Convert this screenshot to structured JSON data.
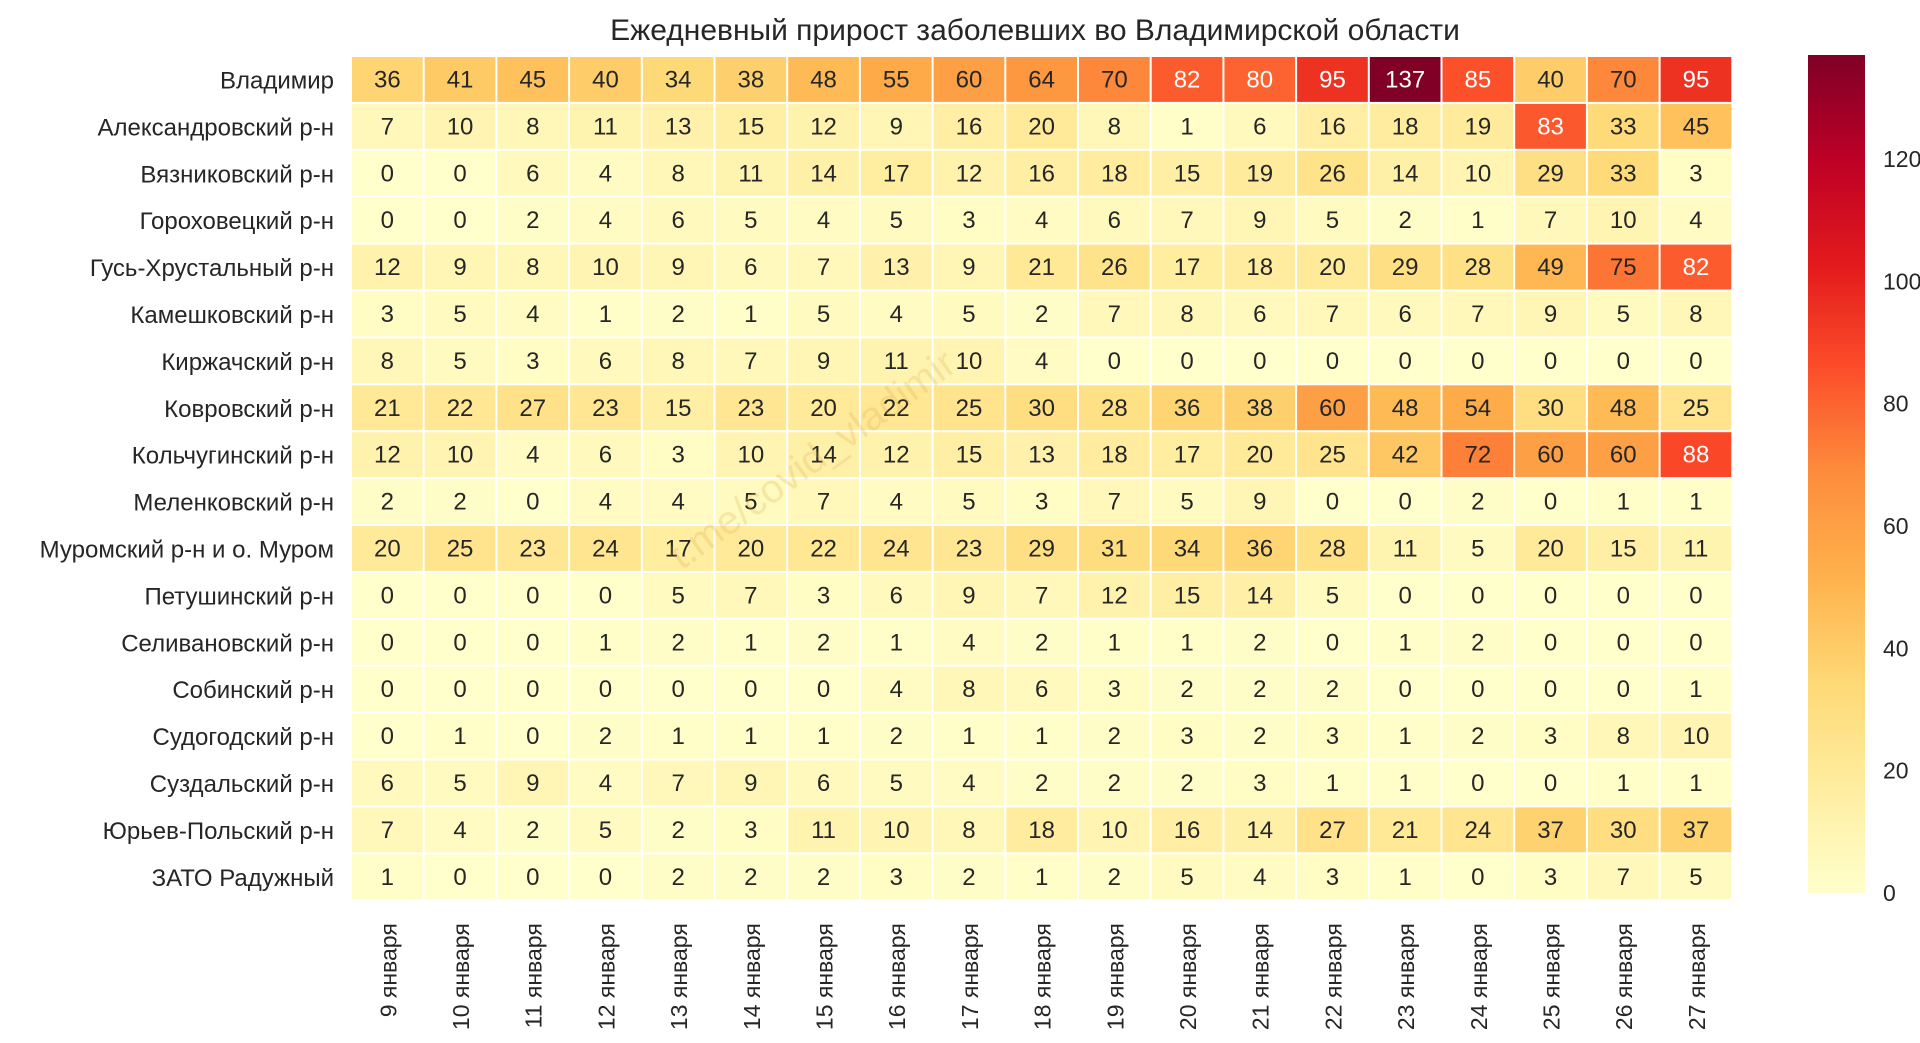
{
  "chart_data": {
    "type": "heatmap",
    "title": "Ежедневный прирост заболевших во Владимирской области",
    "watermark": "t.me/covid_vladimir",
    "rows": [
      "Владимир",
      "Александровский р-н",
      "Вязниковский р-н",
      "Гороховецкий р-н",
      "Гусь-Хрустальный р-н",
      "Камешковский р-н",
      "Киржачский р-н",
      "Ковровский р-н",
      "Кольчугинский р-н",
      "Меленковский р-н",
      "Муромский р-н и о. Муром",
      "Петушинский р-н",
      "Селивановский р-н",
      "Собинский р-н",
      "Судогодский р-н",
      "Суздальский р-н",
      "Юрьев-Польский р-н",
      "ЗАТО Радужный"
    ],
    "columns": [
      "9 января",
      "10 января",
      "11 января",
      "12 января",
      "13 января",
      "14 января",
      "15 января",
      "16 января",
      "17 января",
      "18 января",
      "19 января",
      "20 января",
      "21 января",
      "22 января",
      "23 января",
      "24 января",
      "25 января",
      "26 января",
      "27 января"
    ],
    "values": [
      [
        36,
        41,
        45,
        40,
        34,
        38,
        48,
        55,
        60,
        64,
        70,
        82,
        80,
        95,
        137,
        85,
        40,
        70,
        95
      ],
      [
        7,
        10,
        8,
        11,
        13,
        15,
        12,
        9,
        16,
        20,
        8,
        1,
        6,
        16,
        18,
        19,
        83,
        33,
        45
      ],
      [
        0,
        0,
        6,
        4,
        8,
        11,
        14,
        17,
        12,
        16,
        18,
        15,
        19,
        26,
        14,
        10,
        29,
        33,
        3
      ],
      [
        0,
        0,
        2,
        4,
        6,
        5,
        4,
        5,
        3,
        4,
        6,
        7,
        9,
        5,
        2,
        1,
        7,
        10,
        4
      ],
      [
        12,
        9,
        8,
        10,
        9,
        6,
        7,
        13,
        9,
        21,
        26,
        17,
        18,
        20,
        29,
        28,
        49,
        75,
        82
      ],
      [
        3,
        5,
        4,
        1,
        2,
        1,
        5,
        4,
        5,
        2,
        7,
        8,
        6,
        7,
        6,
        7,
        9,
        5,
        8
      ],
      [
        8,
        5,
        3,
        6,
        8,
        7,
        9,
        11,
        10,
        4,
        0,
        0,
        0,
        0,
        0,
        0,
        0,
        0,
        0
      ],
      [
        21,
        22,
        27,
        23,
        15,
        23,
        20,
        22,
        25,
        30,
        28,
        36,
        38,
        60,
        48,
        54,
        30,
        48,
        25
      ],
      [
        12,
        10,
        4,
        6,
        3,
        10,
        14,
        12,
        15,
        13,
        18,
        17,
        20,
        25,
        42,
        72,
        60,
        60,
        88
      ],
      [
        2,
        2,
        0,
        4,
        4,
        5,
        7,
        4,
        5,
        3,
        7,
        5,
        9,
        0,
        0,
        2,
        0,
        1,
        1
      ],
      [
        20,
        25,
        23,
        24,
        17,
        20,
        22,
        24,
        23,
        29,
        31,
        34,
        36,
        28,
        11,
        5,
        20,
        15,
        11
      ],
      [
        0,
        0,
        0,
        0,
        5,
        7,
        3,
        6,
        9,
        7,
        12,
        15,
        14,
        5,
        0,
        0,
        0,
        0,
        0
      ],
      [
        0,
        0,
        0,
        1,
        2,
        1,
        2,
        1,
        4,
        2,
        1,
        1,
        2,
        0,
        1,
        2,
        0,
        0,
        0
      ],
      [
        0,
        0,
        0,
        0,
        0,
        0,
        0,
        4,
        8,
        6,
        3,
        2,
        2,
        2,
        0,
        0,
        0,
        0,
        1
      ],
      [
        0,
        1,
        0,
        2,
        1,
        1,
        1,
        2,
        1,
        1,
        2,
        3,
        2,
        3,
        1,
        2,
        3,
        8,
        10
      ],
      [
        6,
        5,
        9,
        4,
        7,
        9,
        6,
        5,
        4,
        2,
        2,
        2,
        3,
        1,
        1,
        0,
        0,
        1,
        1
      ],
      [
        7,
        4,
        2,
        5,
        2,
        3,
        11,
        10,
        8,
        18,
        10,
        16,
        14,
        27,
        21,
        24,
        37,
        30,
        37
      ],
      [
        1,
        0,
        0,
        0,
        2,
        2,
        2,
        3,
        2,
        1,
        2,
        5,
        4,
        3,
        1,
        0,
        3,
        7,
        5
      ]
    ],
    "color_range": [
      0,
      137
    ],
    "colormap": "YlOrRd",
    "colorbar_ticks": [
      0,
      20,
      40,
      60,
      80,
      100,
      120
    ],
    "show_grid": false,
    "annotated": true
  }
}
